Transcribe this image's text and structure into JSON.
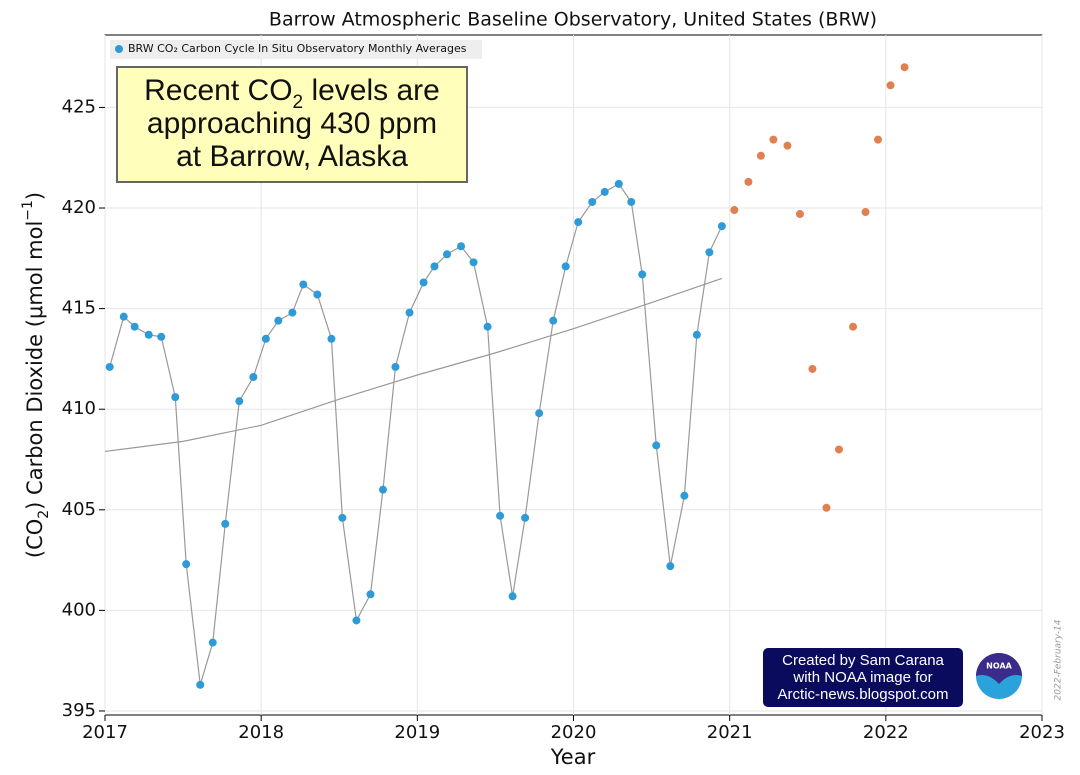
{
  "chart_data": {
    "type": "scatter",
    "title": "Barrow Atmospheric Baseline Observatory, United States (BRW)",
    "xlabel": "Year",
    "ylabel": [
      "(CO",
      "2",
      ") Carbon Dioxide (μmol mol",
      "−1",
      ")"
    ],
    "xlim": [
      2017,
      2023
    ],
    "ylim": [
      394.8,
      428.6
    ],
    "xticks": [
      2017,
      2018,
      2019,
      2020,
      2021,
      2022,
      2023
    ],
    "yticks": [
      395,
      400,
      405,
      410,
      415,
      420,
      425
    ],
    "grid": true,
    "legend": "upper left",
    "series": [
      {
        "name": "BRW CO₂ Carbon Cycle In Situ Observatory Monthly Averages",
        "color": "#2e9bd6",
        "style": "markers+line",
        "line_color": "#999999",
        "x": [
          2017.03,
          2017.12,
          2017.19,
          2017.28,
          2017.36,
          2017.45,
          2017.52,
          2017.61,
          2017.69,
          2017.77,
          2017.86,
          2017.95,
          2018.03,
          2018.11,
          2018.2,
          2018.27,
          2018.36,
          2018.45,
          2018.52,
          2018.61,
          2018.7,
          2018.78,
          2018.86,
          2018.95,
          2019.04,
          2019.11,
          2019.19,
          2019.28,
          2019.36,
          2019.45,
          2019.53,
          2019.61,
          2019.69,
          2019.78,
          2019.87,
          2019.95,
          2020.03,
          2020.12,
          2020.2,
          2020.29,
          2020.37,
          2020.44,
          2020.53,
          2020.62,
          2020.71,
          2020.79,
          2020.87,
          2020.95
        ],
        "values": [
          412.1,
          414.6,
          414.1,
          413.7,
          413.6,
          410.6,
          402.3,
          396.3,
          398.4,
          404.3,
          410.4,
          411.6,
          413.5,
          414.4,
          414.8,
          416.2,
          415.7,
          413.5,
          404.6,
          399.5,
          400.8,
          406.0,
          412.1,
          414.8,
          416.3,
          417.1,
          417.7,
          418.1,
          417.3,
          414.1,
          404.7,
          400.7,
          404.6,
          409.8,
          414.4,
          417.1,
          419.3,
          420.3,
          420.8,
          421.2,
          420.3,
          416.7,
          408.2,
          402.2,
          405.7,
          413.7,
          417.8,
          419.1
        ]
      },
      {
        "color": "#e08050",
        "style": "markers",
        "x": [
          2021.03,
          2021.12,
          2021.2,
          2021.28,
          2021.37,
          2021.45,
          2021.53,
          2021.62,
          2021.7,
          2021.79,
          2021.87,
          2021.95,
          2022.03,
          2022.12
        ],
        "values": [
          419.9,
          421.3,
          422.6,
          423.4,
          423.1,
          419.7,
          412.0,
          405.1,
          408.0,
          414.1,
          419.8,
          423.4,
          426.1,
          427.0
        ]
      },
      {
        "color": "#999999",
        "style": "line",
        "x": [
          2017.0,
          2017.5,
          2018.0,
          2018.5,
          2019.0,
          2019.5,
          2020.0,
          2020.5,
          2020.95
        ],
        "values": [
          407.9,
          408.4,
          409.2,
          410.5,
          411.7,
          412.8,
          414.0,
          415.3,
          416.5
        ]
      }
    ],
    "annotation": [
      [
        "Recent CO",
        "2",
        " levels are"
      ],
      [
        "approaching 430 ppm"
      ],
      [
        "at Barrow, Alaska"
      ]
    ],
    "credits": [
      "Created by Sam Carana",
      "with NOAA image for",
      "Arctic-news.blogspot.com"
    ],
    "logo_text": "NOAA",
    "date_stamp": "2022-February-14"
  }
}
